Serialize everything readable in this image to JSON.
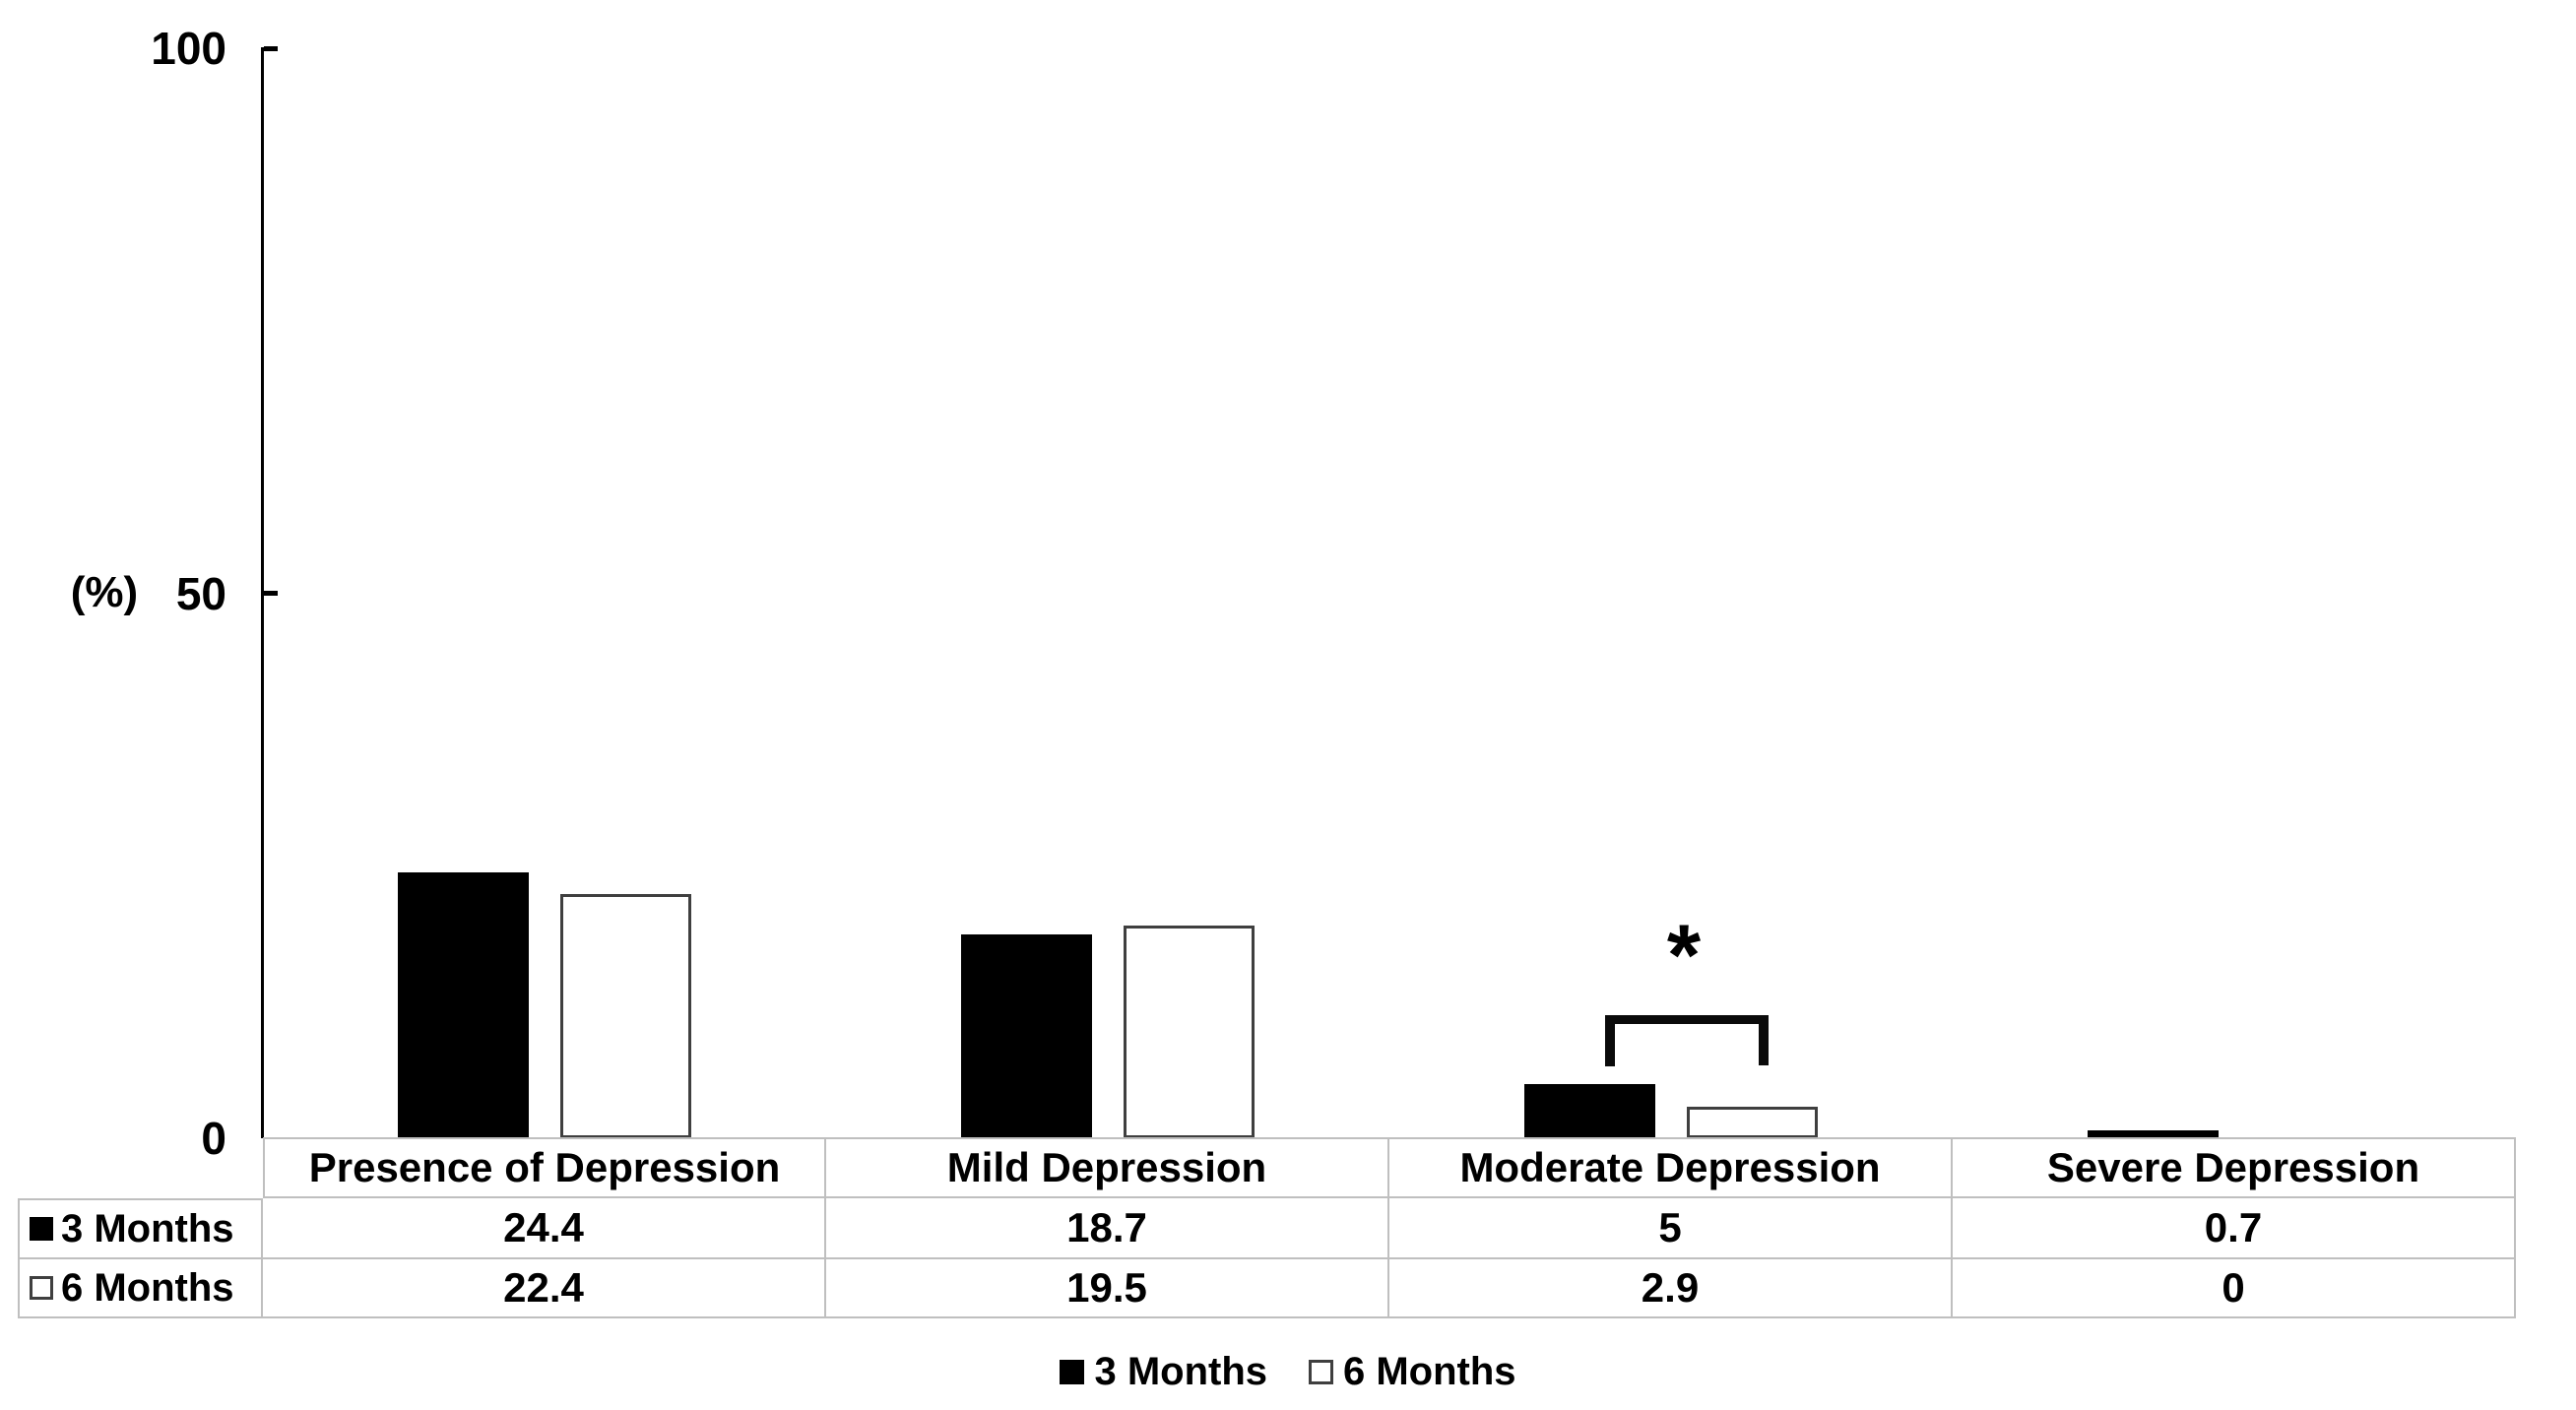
{
  "chart_data": {
    "type": "bar",
    "title": "",
    "ylabel": "(%)",
    "ylim": [
      0,
      100
    ],
    "yticks": [
      100,
      50,
      0
    ],
    "grid": false,
    "legend_position": "bottom",
    "data_table_shown": true,
    "categories": [
      "Presence of Depression",
      "Mild Depression",
      "Moderate Depression",
      "Severe Depression"
    ],
    "series": [
      {
        "name": "3 Months",
        "style": "solid-black",
        "values": [
          24.4,
          18.7,
          5,
          0.7
        ]
      },
      {
        "name": "6 Months",
        "style": "white-outlined",
        "values": [
          22.4,
          19.5,
          2.9,
          0
        ]
      }
    ],
    "annotations": [
      {
        "label": "*",
        "category": "Moderate Depression",
        "between_series": [
          "3 Months",
          "6 Months"
        ]
      }
    ]
  },
  "colors": {
    "bar_black": "#000000",
    "bar_white_fill": "#ffffff",
    "bar_white_border": "#3f3f3f",
    "table_grid": "#bfbfbf",
    "axis": "#000000",
    "text": "#000000"
  }
}
